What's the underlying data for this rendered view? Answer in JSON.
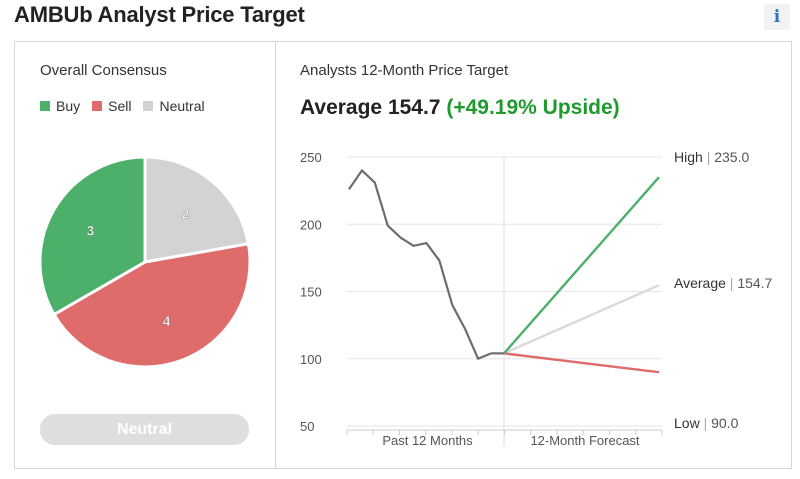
{
  "header": {
    "title": "AMBUb Analyst Price Target",
    "info_icon": "i"
  },
  "consensus": {
    "title": "Overall Consensus",
    "legend": [
      {
        "label": "Buy",
        "color": "#4caf6a"
      },
      {
        "label": "Sell",
        "color": "#e06b6b"
      },
      {
        "label": "Neutral",
        "color": "#d3d3d3"
      }
    ],
    "pie": {
      "slices": [
        {
          "label": "Neutral",
          "value": 2,
          "text": "2",
          "color": "#d3d3d3"
        },
        {
          "label": "Sell",
          "value": 4,
          "text": "4",
          "color": "#e06b6b"
        },
        {
          "label": "Buy",
          "value": 3,
          "text": "3",
          "color": "#4caf6a"
        }
      ]
    },
    "badge": "Neutral"
  },
  "price_target": {
    "title": "Analysts 12-Month Price Target",
    "average_label": "Average 154.7",
    "upside_label": "(+49.19% Upside)"
  },
  "chart_data": {
    "type": "line",
    "y_ticks": [
      "250",
      "200",
      "150",
      "100",
      "50"
    ],
    "ylim": [
      50,
      250
    ],
    "x_labels": [
      "Past 12 Months",
      "12-Month Forecast"
    ],
    "grid": true,
    "history": {
      "color": "#6d6d6d",
      "values": [
        226,
        240,
        231,
        199,
        190,
        184,
        186,
        173,
        140,
        122,
        100,
        104
      ]
    },
    "start_value": 104,
    "targets": [
      {
        "name": "High",
        "value": 235.0,
        "label": "High",
        "value_text": "235.0",
        "color": "#4caf6a"
      },
      {
        "name": "Average",
        "value": 154.7,
        "label": "Average",
        "value_text": "154.7",
        "color": "#dadada"
      },
      {
        "name": "Low",
        "value": 90.0,
        "label": "Low",
        "value_text": "90.0",
        "color": "#e06b6b"
      }
    ]
  }
}
